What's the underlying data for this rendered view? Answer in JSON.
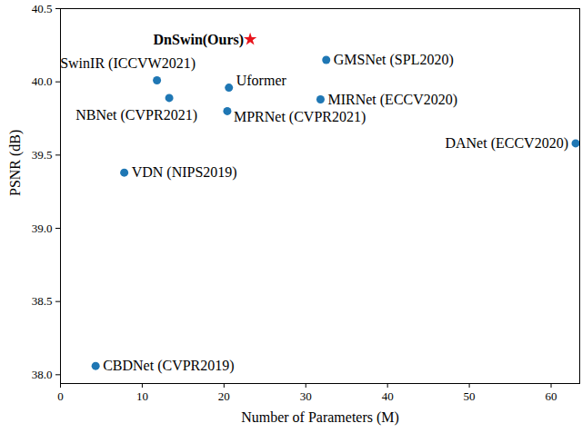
{
  "chart_data": {
    "type": "scatter",
    "xlabel": "Number of Parameters (M)",
    "ylabel": "PSNR (dB)",
    "xlim": [
      0,
      63.5
    ],
    "ylim": [
      37.94,
      40.5
    ],
    "xticks": [
      0,
      10,
      20,
      30,
      40,
      50,
      60
    ],
    "yticks": [
      {
        "value": 38,
        "label": "38.0"
      },
      38.5,
      {
        "value": 39,
        "label": "39.0"
      },
      39.5,
      {
        "value": 40,
        "label": "40.0"
      },
      40.5
    ],
    "grid": false,
    "points": [
      {
        "label": "DnSwin(Ours)",
        "x": 23.2,
        "y": 40.29,
        "color": "#e8141c",
        "marker": "star"
      },
      {
        "label": "SwinIR (ICCVW2021)",
        "x": 11.8,
        "y": 40.01,
        "color": "#1f77b4",
        "marker": "circle"
      },
      {
        "label": "GMSNet (SPL2020)",
        "x": 32.5,
        "y": 40.15,
        "color": "#1f77b4",
        "marker": "circle"
      },
      {
        "label": "Uformer",
        "x": 20.6,
        "y": 39.96,
        "color": "#1f77b4",
        "marker": "circle"
      },
      {
        "label": "NBNet (CVPR2021)",
        "x": 13.3,
        "y": 39.89,
        "color": "#1f77b4",
        "marker": "circle"
      },
      {
        "label": "MPRNet (CVPR2021)",
        "x": 20.4,
        "y": 39.8,
        "color": "#1f77b4",
        "marker": "circle"
      },
      {
        "label": "MIRNet (ECCV2020)",
        "x": 31.8,
        "y": 39.88,
        "color": "#1f77b4",
        "marker": "circle"
      },
      {
        "label": "DANet (ECCV2020)",
        "x": 63.0,
        "y": 39.58,
        "color": "#1f77b4",
        "marker": "circle"
      },
      {
        "label": "VDN (NIPS2019)",
        "x": 7.8,
        "y": 39.38,
        "color": "#1f77b4",
        "marker": "circle"
      },
      {
        "label": "CBDNet (CVPR2019)",
        "x": 4.3,
        "y": 38.06,
        "color": "#1f77b4",
        "marker": "circle"
      }
    ]
  }
}
